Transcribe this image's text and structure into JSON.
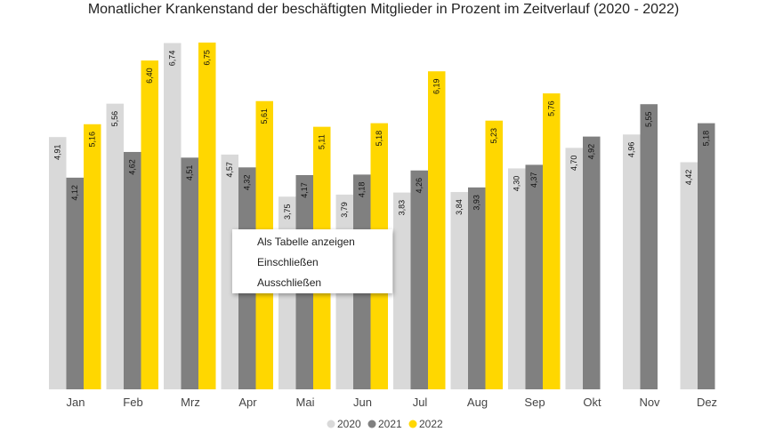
{
  "chart_data": {
    "type": "bar",
    "title": "Monatlicher Krankenstand der beschäftigten Mitglieder in Prozent im Zeitverlauf (2020 - 2022)",
    "xlabel": "",
    "ylabel": "",
    "ylim": [
      0,
      7.0
    ],
    "grid": false,
    "legend_position": "bottom",
    "categories": [
      "Jan",
      "Feb",
      "Mrz",
      "Apr",
      "Mai",
      "Jun",
      "Jul",
      "Aug",
      "Sep",
      "Okt",
      "Nov",
      "Dez"
    ],
    "series": [
      {
        "name": "2020",
        "color": "#d9d9d9",
        "values": [
          4.91,
          5.56,
          6.74,
          4.57,
          3.75,
          3.79,
          3.83,
          3.84,
          4.3,
          4.7,
          4.96,
          4.42
        ],
        "labels": [
          "4,91",
          "5,56",
          "6,74",
          "4,57",
          "3,75",
          "3,79",
          "3,83",
          "3,84",
          "4,30",
          "4,70",
          "4,96",
          "4,42"
        ]
      },
      {
        "name": "2021",
        "color": "#808080",
        "values": [
          4.12,
          4.62,
          4.51,
          4.32,
          4.17,
          4.18,
          4.26,
          3.93,
          4.37,
          4.92,
          5.55,
          5.18
        ],
        "labels": [
          "4,12",
          "4,62",
          "4,51",
          "4,32",
          "4,17",
          "4,18",
          "4,26",
          "3,93",
          "4,37",
          "4,92",
          "5,55",
          "5,18"
        ]
      },
      {
        "name": "2022",
        "color": "#ffd700",
        "values": [
          5.16,
          6.4,
          6.75,
          5.61,
          5.11,
          5.18,
          6.19,
          5.23,
          5.76,
          null,
          null,
          null
        ],
        "labels": [
          "5,16",
          "6,40",
          "6,75",
          "5,61",
          "5,11",
          "5,18",
          "6,19",
          "5,23",
          "5,76",
          null,
          null,
          null
        ]
      }
    ]
  },
  "context_menu": {
    "items": [
      "Als Tabelle anzeigen",
      "Einschließen",
      "Ausschließen"
    ]
  }
}
